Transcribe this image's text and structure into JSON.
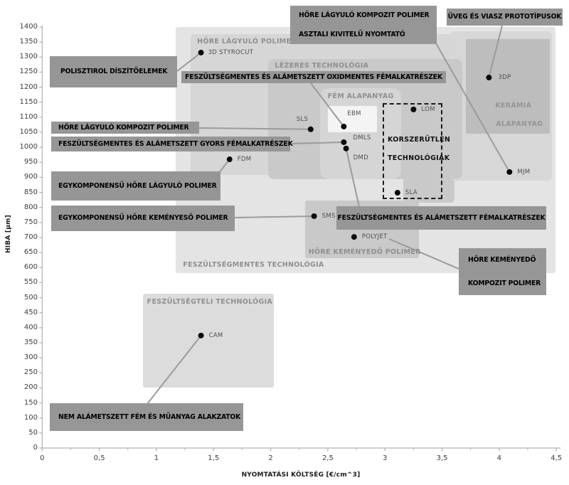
{
  "chart_data": {
    "type": "scatter",
    "xlabel": "NYOMTATÁSI KÖLTSÉG [€/cm^3]",
    "ylabel": "HIBA [μm]",
    "xlim": [
      0,
      4.5
    ],
    "ylim": [
      0,
      1400
    ],
    "grid": false,
    "xticks": [
      {
        "v": 0,
        "label": "0"
      },
      {
        "v": 0.5,
        "label": "0,5"
      },
      {
        "v": 1,
        "label": "1"
      },
      {
        "v": 1.5,
        "label": "1,5"
      },
      {
        "v": 2,
        "label": "2"
      },
      {
        "v": 2.5,
        "label": "2,5"
      },
      {
        "v": 3,
        "label": "3"
      },
      {
        "v": 3.5,
        "label": "3,5"
      },
      {
        "v": 4,
        "label": "4"
      },
      {
        "v": 4.5,
        "label": "4,5"
      }
    ],
    "yticks": [
      0,
      50,
      100,
      150,
      200,
      250,
      300,
      350,
      400,
      450,
      500,
      550,
      600,
      650,
      700,
      750,
      800,
      850,
      900,
      950,
      1000,
      1050,
      1100,
      1150,
      1200,
      1250,
      1300,
      1350,
      1400
    ],
    "points": [
      {
        "id": "p-3dstyrocut",
        "label": "3D STYROCUT",
        "x": 1.39,
        "y": 1315
      },
      {
        "id": "p-3dp",
        "label": "3DP",
        "x": 3.91,
        "y": 1232
      },
      {
        "id": "p-lom",
        "label": "LOM",
        "x": 3.25,
        "y": 1126
      },
      {
        "id": "p-ebm",
        "label": "EBM",
        "x": 2.64,
        "y": 1069
      },
      {
        "id": "p-sls",
        "label": "SLS",
        "x": 2.35,
        "y": 1060
      },
      {
        "id": "p-dmls",
        "label": "DMLS",
        "x": 2.64,
        "y": 1017
      },
      {
        "id": "p-dmd",
        "label": "DMD",
        "x": 2.66,
        "y": 996
      },
      {
        "id": "p-fdm",
        "label": "FDM",
        "x": 1.64,
        "y": 960
      },
      {
        "id": "p-mjm",
        "label": "MJM",
        "x": 4.09,
        "y": 918
      },
      {
        "id": "p-sla",
        "label": "SLA",
        "x": 3.11,
        "y": 849
      },
      {
        "id": "p-sms",
        "label": "SMS",
        "x": 2.38,
        "y": 771
      },
      {
        "id": "p-polyjet",
        "label": "POLYJET",
        "x": 2.73,
        "y": 702
      },
      {
        "id": "p-cam",
        "label": "CAM",
        "x": 1.39,
        "y": 374
      }
    ],
    "regions": [
      {
        "id": "r-feszultsegmentes",
        "label": "FESZÜLTSÉGMENTES TECHNOLÓGIA",
        "x": [
          1.17,
          4.49
        ],
        "y": [
          582,
          1400
        ]
      },
      {
        "id": "r-hore-lagyulo",
        "label": "HŐRE LÁGYULÓ POLIMER",
        "x": [
          1.3,
          3.62
        ],
        "y": [
          908,
          1376
        ]
      },
      {
        "id": "r-lezeres-column",
        "label": "",
        "x": [
          3.16,
          3.61
        ],
        "y": [
          816,
          1187
        ]
      },
      {
        "id": "r-keramia-column",
        "label": "",
        "x": [
          3.57,
          4.46
        ],
        "y": [
          889,
          1386
        ]
      },
      {
        "id": "r-lezeres",
        "label": "LÉZERES TECHNOLÓGIA",
        "x": [
          1.98,
          3.68
        ],
        "y": [
          894,
          1294
        ]
      },
      {
        "id": "r-fem-alapanyag",
        "label": "FÉM ALAPANYAG",
        "x": [
          2.43,
          3.14
        ],
        "y": [
          894,
          1197
        ]
      },
      {
        "id": "r-ebm-box",
        "label": "",
        "x": [
          2.5,
          2.93
        ],
        "y": [
          1050,
          1138
        ]
      },
      {
        "id": "r-keramia",
        "lines": [
          "KERÁMIA",
          "ALAPANYAG"
        ],
        "x": [
          3.71,
          4.44
        ],
        "y": [
          1045,
          1360
        ]
      },
      {
        "id": "r-hore-kemenyedo",
        "label": "HŐRE KEMÉNYEDŐ POLIMER",
        "x": [
          2.3,
          3.3
        ],
        "y": [
          631,
          823
        ]
      },
      {
        "id": "r-feszultsegteli",
        "label": "FESZÜLTSÉGTELI TECHNOLÓGIA",
        "x": [
          0.88,
          2.03
        ],
        "y": [
          201,
          513
        ]
      },
      {
        "id": "r-korszerutlen",
        "lines": [
          "KORSZERŰTLEN",
          "TECHNOLÓGIÁK"
        ],
        "x": [
          2.98,
          3.5
        ],
        "y": [
          828,
          1147
        ],
        "dashed": true
      }
    ],
    "callouts": [
      {
        "id": "c-asztali",
        "lines": [
          "HŐRE LÁGYULÓ KOMPOZIT POLIMER",
          "ASZTALI KIVITELŰ NYOMTATÓ"
        ],
        "target": "p-mjm"
      },
      {
        "id": "c-uveg",
        "lines": [
          "ÜVEG ÉS VIASZ PROTOTÍPUSOK"
        ],
        "target": "p-3dp"
      },
      {
        "id": "c-polisztirol",
        "lines": [
          "POLISZTIROL DÍSZÍTŐELEMEK"
        ],
        "target": "p-3dstyrocut"
      },
      {
        "id": "c-oxidmentes",
        "lines": [
          "FESZÜLTSÉGMENTES ÉS ALÁMETSZETT OXIDMENTES FÉMALKATRÉSZEK"
        ],
        "target": "p-ebm"
      },
      {
        "id": "c-kompozit",
        "lines": [
          "HŐRE LÁGYULÓ KOMPOZIT POLIMER"
        ],
        "target": "p-sls"
      },
      {
        "id": "c-gyors",
        "lines": [
          "FESZÜLTSÉGMENTES ÉS ALÁMETSZETT GYORS FÉMALKATRÉSZEK"
        ],
        "target": "p-dmls"
      },
      {
        "id": "c-egykomp-lagyulo",
        "lines": [
          "EGYKOMPONENSŰ HŐRE LÁGYULÓ POLIMER"
        ],
        "target": "p-fdm"
      },
      {
        "id": "c-egykomp-kemenyeso",
        "lines": [
          "EGYKOMPONENSŰ HŐRE KEMÉNYESŐ POLIMER"
        ],
        "target": "p-sms"
      },
      {
        "id": "c-feszmentes-fem",
        "lines": [
          "FESZÜLTSÉGMENTES ÉS ALÁMETSZETT FÉMALKATRÉSZEK"
        ],
        "target": "p-dmd"
      },
      {
        "id": "c-kemenyedo-kompozit",
        "lines": [
          "HŐRE KEMÉNYEDŐ",
          "KOMPOZIT POLIMER"
        ],
        "target": "p-polyjet"
      },
      {
        "id": "c-nem-alametszett",
        "lines": [
          "NEM ALÁMETSZETT FÉM ÉS MŰANYAG ALAKZATOK"
        ],
        "target": "p-cam"
      }
    ],
    "colors": {
      "callout_bg": "#969696",
      "callout_text": "#000000",
      "region_label": "#8f8f8f",
      "region_light": "#e4e4e4",
      "region_mid": "#d6d6d6",
      "region_dark": "#c9c9c9",
      "keramia_bg": "#bdbdbd",
      "ebm_bg": "#f4f4f4",
      "dot": "#0a0a0a",
      "connector": "#9b9b9b",
      "axis": "#b0b0b0"
    }
  }
}
